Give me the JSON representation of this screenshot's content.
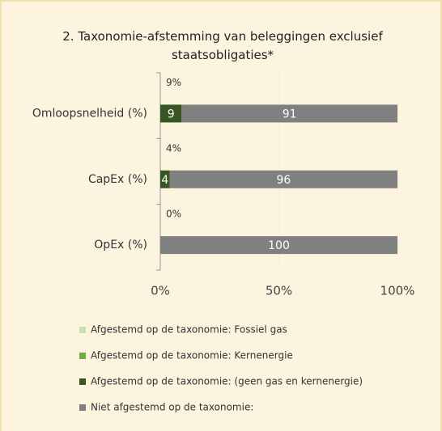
{
  "chart_data": {
    "type": "stacked-barh",
    "title": "2. Taxonomie-afstemming van beleggingen exclusief staatsobligaties*",
    "categories": [
      "Omloopsnelheid (%)",
      "CapEx (%)",
      "OpEx (%)"
    ],
    "annotations": [
      "9%",
      "4%",
      "0%"
    ],
    "series": [
      {
        "name": "Afgestemd op de taxonomie: Fossiel gas",
        "color": "#c9e2b3",
        "values": [
          0,
          0,
          0
        ]
      },
      {
        "name": "Afgestemd op de taxonomie: Kernenergie",
        "color": "#70ad47",
        "values": [
          0,
          0,
          0
        ]
      },
      {
        "name": "Afgestemd op de taxonomie: (geen gas en kernenergie)",
        "color": "#375623",
        "values": [
          9,
          4,
          0
        ]
      },
      {
        "name": "Niet afgestemd op de taxonomie:",
        "color": "#808080",
        "values": [
          91,
          96,
          100
        ]
      }
    ],
    "xlim": [
      0,
      100
    ],
    "xticks": [
      {
        "value": 0,
        "label": "0%"
      },
      {
        "value": 50,
        "label": "50%"
      },
      {
        "value": 100,
        "label": "100%"
      }
    ],
    "grid": true
  }
}
